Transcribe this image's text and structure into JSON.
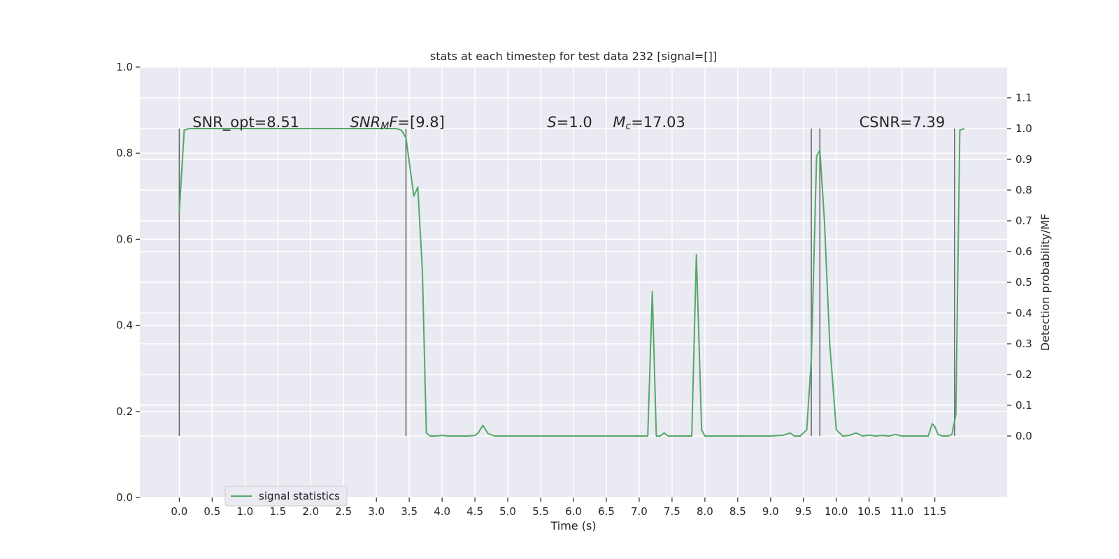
{
  "chart_data": {
    "type": "line",
    "title": "stats at each timestep for test data 232 [signal=[]]",
    "xlabel": "Time (s)",
    "ylabel_left": "",
    "ylabel_right": "Detection probability/MF",
    "xlim": [
      -0.6,
      12.6
    ],
    "ylim_left": [
      0.0,
      1.0
    ],
    "ylim_right": [
      -0.2,
      1.2
    ],
    "x_ticks": [
      0.0,
      0.5,
      1.0,
      1.5,
      2.0,
      2.5,
      3.0,
      3.5,
      4.0,
      4.5,
      5.0,
      5.5,
      6.0,
      6.5,
      7.0,
      7.5,
      8.0,
      8.5,
      9.0,
      9.5,
      10.0,
      10.5,
      11.0,
      11.5
    ],
    "x_tick_labels": [
      "0.0",
      "0.5",
      "1.0",
      "1.5",
      "2.0",
      "2.5",
      "3.0",
      "3.5",
      "4.0",
      "4.5",
      "5.0",
      "5.5",
      "6.0",
      "6.5",
      "7.0",
      "7.5",
      "8.0",
      "8.5",
      "9.0",
      "9.5",
      "10.0",
      "10.5",
      "11.0",
      "11.5"
    ],
    "y_left_ticks": [
      0.0,
      0.2,
      0.4,
      0.6,
      0.8,
      1.0
    ],
    "y_left_tick_labels": [
      "0.0",
      "0.2",
      "0.4",
      "0.6",
      "0.8",
      "1.0"
    ],
    "y_right_ticks": [
      0.0,
      0.1,
      0.2,
      0.3,
      0.4,
      0.5,
      0.6,
      0.7,
      0.8,
      0.9,
      1.0,
      1.1
    ],
    "y_right_tick_labels": [
      "0.0",
      "0.1",
      "0.2",
      "0.3",
      "0.4",
      "0.5",
      "0.6",
      "0.7",
      "0.8",
      "0.9",
      "1.0",
      "1.1"
    ],
    "grid": true,
    "legend": {
      "placement": "lower-left",
      "entries": [
        "signal statistics"
      ]
    },
    "colors": {
      "series": "#55a868",
      "vlines": "#6b6b6b",
      "plot_bg": "#eaeaf2",
      "grid": "#ffffff"
    },
    "vlines": [
      {
        "x": 0.0,
        "y0": 0.0,
        "y1": 1.0
      },
      {
        "x": 3.45,
        "y0": 0.0,
        "y1": 1.0
      },
      {
        "x": 9.62,
        "y0": 0.0,
        "y1": 1.0
      },
      {
        "x": 9.75,
        "y0": 0.0,
        "y1": 1.0
      },
      {
        "x": 11.8,
        "y0": 0.0,
        "y1": 1.0
      }
    ],
    "annotations": [
      {
        "x": 0.2,
        "y": 1.0,
        "parts": [
          {
            "t": "SNR_opt=8.51",
            "i": false
          }
        ]
      },
      {
        "x": 2.6,
        "y": 1.0,
        "parts": [
          {
            "t": "SNR",
            "i": true
          },
          {
            "t": "M",
            "i": true,
            "sub": true
          },
          {
            "t": "F",
            "i": true
          },
          {
            "t": "=[9.8]",
            "i": false
          }
        ]
      },
      {
        "x": 5.6,
        "y": 1.0,
        "parts": [
          {
            "t": "S",
            "i": true
          },
          {
            "t": "=1.0",
            "i": false
          }
        ]
      },
      {
        "x": 6.6,
        "y": 1.0,
        "parts": [
          {
            "t": "M",
            "i": true
          },
          {
            "t": "c",
            "i": true,
            "sub": true
          },
          {
            "t": "=17.03",
            "i": false
          }
        ]
      },
      {
        "x": 10.35,
        "y": 1.0,
        "parts": [
          {
            "t": "CSNR=7.39",
            "i": false
          }
        ]
      }
    ],
    "series": [
      {
        "name": "signal statistics",
        "axis": "right",
        "x": [
          0.0,
          0.075,
          0.15,
          0.25,
          0.5,
          1.0,
          1.5,
          2.0,
          2.5,
          3.0,
          3.3,
          3.38,
          3.45,
          3.52,
          3.57,
          3.63,
          3.7,
          3.76,
          3.82,
          3.9,
          4.0,
          4.1,
          4.2,
          4.3,
          4.4,
          4.5,
          4.55,
          4.62,
          4.7,
          4.8,
          5.0,
          5.5,
          6.0,
          6.5,
          7.0,
          7.13,
          7.2,
          7.26,
          7.32,
          7.38,
          7.44,
          7.5,
          7.6,
          7.7,
          7.8,
          7.87,
          7.95,
          8.0,
          8.5,
          9.0,
          9.2,
          9.3,
          9.36,
          9.45,
          9.55,
          9.62,
          9.7,
          9.75,
          9.82,
          9.9,
          10.0,
          10.1,
          10.2,
          10.3,
          10.4,
          10.5,
          10.6,
          10.7,
          10.8,
          10.9,
          11.0,
          11.2,
          11.4,
          11.46,
          11.5,
          11.55,
          11.62,
          11.7,
          11.76,
          11.82,
          11.88,
          11.95
        ],
        "y": [
          0.73,
          0.995,
          1.0,
          1.0,
          1.0,
          1.0,
          1.0,
          1.0,
          1.0,
          1.0,
          1.0,
          0.995,
          0.97,
          0.86,
          0.78,
          0.81,
          0.54,
          0.01,
          0.0,
          0.0,
          0.002,
          0.0,
          0.0,
          0.0,
          0.0,
          0.002,
          0.01,
          0.035,
          0.008,
          0.0,
          0.0,
          0.0,
          0.0,
          0.0,
          0.0,
          0.0,
          0.47,
          0.0,
          0.0,
          0.01,
          0.0,
          0.0,
          0.0,
          0.0,
          0.0,
          0.59,
          0.02,
          0.0,
          0.0,
          0.0,
          0.003,
          0.01,
          0.0,
          0.0,
          0.02,
          0.25,
          0.91,
          0.93,
          0.7,
          0.3,
          0.02,
          0.0,
          0.002,
          0.01,
          0.0,
          0.003,
          0.0,
          0.002,
          0.0,
          0.005,
          0.0,
          0.0,
          0.0,
          0.04,
          0.03,
          0.005,
          0.0,
          0.0,
          0.005,
          0.07,
          0.995,
          1.0
        ]
      }
    ]
  }
}
